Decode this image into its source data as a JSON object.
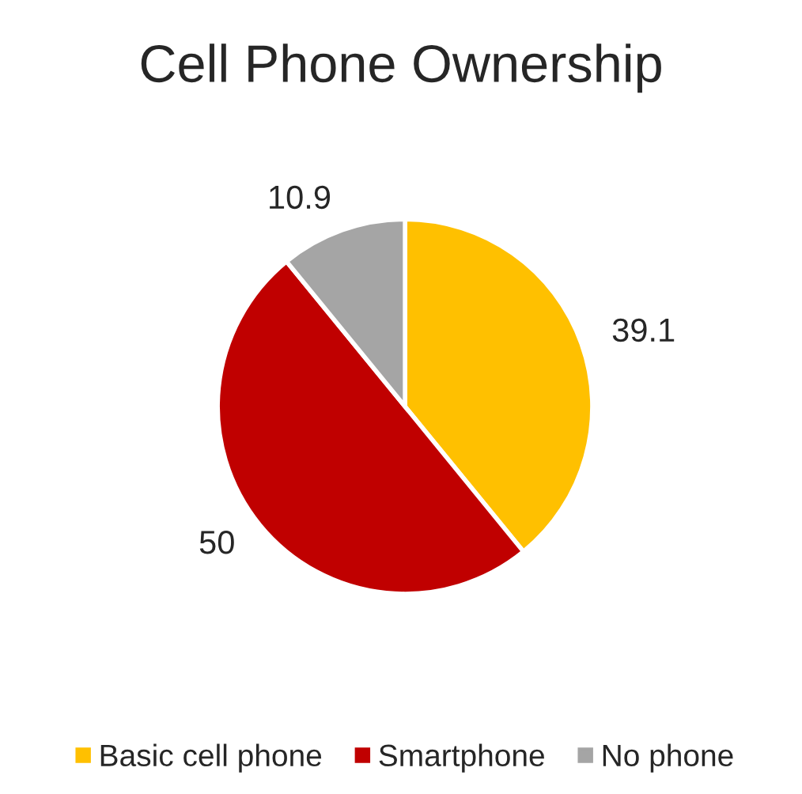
{
  "chart_data": {
    "type": "pie",
    "title": "Cell Phone Ownership",
    "categories": [
      "Basic cell phone",
      "Smartphone",
      "No phone"
    ],
    "values": [
      39.1,
      50,
      10.9
    ],
    "colors": [
      "#ffc000",
      "#c00000",
      "#a5a5a5"
    ],
    "data_labels": true,
    "legend": "bottom"
  }
}
